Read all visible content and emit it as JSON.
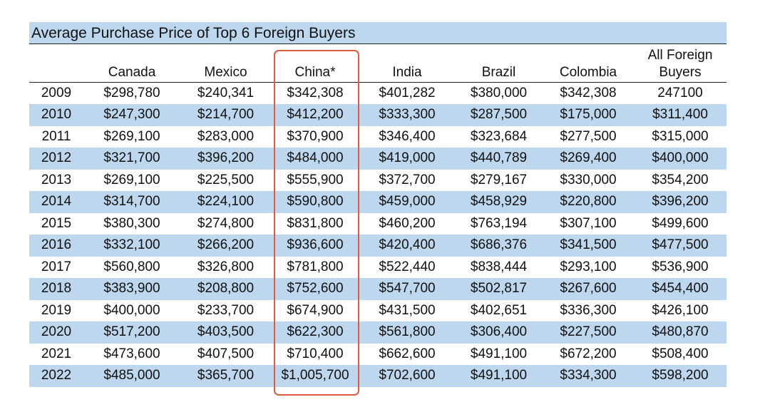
{
  "title": "Average Purchase Price of Top 6 Foreign Buyers",
  "columns": [
    "",
    "Canada",
    "Mexico",
    "China*",
    "India",
    "Brazil",
    "Colombia",
    "All Foreign Buyers"
  ],
  "rows": [
    [
      "2009",
      "$298,780",
      "$240,341",
      "$342,308",
      "$401,282",
      "$380,000",
      "$342,308",
      "247100"
    ],
    [
      "2010",
      "$247,300",
      "$214,700",
      "$412,200",
      "$333,300",
      "$287,500",
      "$175,000",
      "$311,400"
    ],
    [
      "2011",
      "$269,100",
      "$283,000",
      "$370,900",
      "$346,400",
      "$323,684",
      "$277,500",
      "$315,000"
    ],
    [
      "2012",
      "$321,700",
      "$396,200",
      "$484,000",
      "$419,000",
      "$440,789",
      "$269,400",
      "$400,000"
    ],
    [
      "2013",
      "$269,100",
      "$225,500",
      "$555,900",
      "$372,700",
      "$279,167",
      "$330,000",
      "$354,200"
    ],
    [
      "2014",
      "$314,700",
      "$224,100",
      "$590,800",
      "$459,000",
      "$458,929",
      "$220,800",
      "$396,200"
    ],
    [
      "2015",
      "$380,300",
      "$274,800",
      "$831,800",
      "$460,200",
      "$763,194",
      "$307,100",
      "$499,600"
    ],
    [
      "2016",
      "$332,100",
      "$266,200",
      "$936,600",
      "$420,400",
      "$686,376",
      "$341,500",
      "$477,500"
    ],
    [
      "2017",
      "$560,800",
      "$326,800",
      "$781,800",
      "$522,440",
      "$838,444",
      "$293,100",
      "$536,900"
    ],
    [
      "2018",
      "$383,900",
      "$208,800",
      "$752,600",
      "$547,700",
      "$502,817",
      "$267,600",
      "$454,400"
    ],
    [
      "2019",
      "$400,000",
      "$233,700",
      "$674,900",
      "$431,500",
      "$402,651",
      "$336,300",
      "$426,100"
    ],
    [
      "2020",
      "$517,200",
      "$403,500",
      "$622,300",
      "$561,800",
      "$306,400",
      "$227,500",
      "$480,870"
    ],
    [
      "2021",
      "$473,600",
      "$407,500",
      "$710,400",
      "$662,600",
      "$491,100",
      "$672,200",
      "$508,400"
    ],
    [
      "2022",
      "$485,000",
      "$365,700",
      "$1,005,700",
      "$702,600",
      "$491,100",
      "$334,300",
      "$598,200"
    ]
  ],
  "highlighted_column": "China*",
  "colors": {
    "band": "#bdd7ee",
    "highlight_border": "#e05a3f",
    "text": "#111111"
  }
}
